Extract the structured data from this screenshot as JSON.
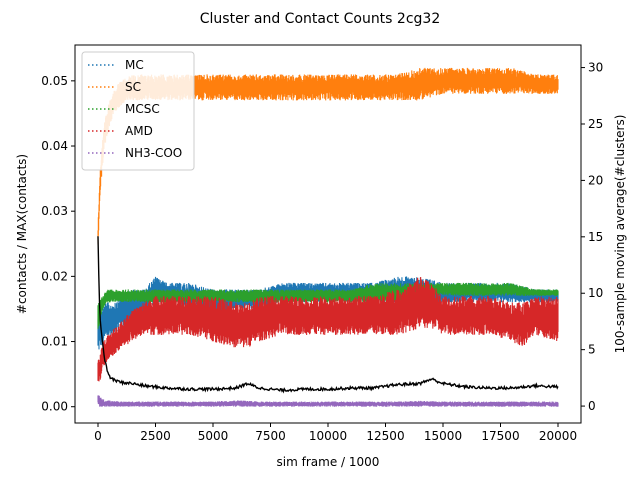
{
  "chart_data": {
    "type": "line",
    "title": "Cluster and Contact Counts 2cg32",
    "xlabel": "sim frame / 1000",
    "ylabel": "#contacts / MAX(contacts)",
    "ylabel_right": "100-sample moving average(#clusters)",
    "xlim": [
      -1000,
      21000
    ],
    "ylim": [
      -0.0025,
      0.0555
    ],
    "ylim_right": [
      -1.5,
      32.0
    ],
    "xticks": [
      0,
      2500,
      5000,
      7500,
      10000,
      12500,
      15000,
      17500,
      20000
    ],
    "xtick_labels": [
      "0",
      "2500",
      "5000",
      "7500",
      "10000",
      "12500",
      "15000",
      "17500",
      "20000"
    ],
    "yticks": [
      0.0,
      0.01,
      0.02,
      0.03,
      0.04,
      0.05
    ],
    "ytick_labels": [
      "0.00",
      "0.01",
      "0.02",
      "0.03",
      "0.04",
      "0.05"
    ],
    "yticks_right": [
      0,
      5,
      10,
      15,
      20,
      25,
      30
    ],
    "ytick_labels_right": [
      "0",
      "5",
      "10",
      "15",
      "20",
      "25",
      "30"
    ],
    "grid": false,
    "legend_position": "top-left",
    "series": [
      {
        "name": "MC",
        "color": "#1f77b4",
        "style": "dotted",
        "axis": "left",
        "x": [
          0,
          100,
          300,
          600,
          1000,
          1500,
          2000,
          2500,
          3000,
          4000,
          5000,
          6000,
          7000,
          8000,
          9000,
          10000,
          11000,
          12000,
          13000,
          14000,
          15000,
          16000,
          17000,
          18000,
          19000,
          20000
        ],
        "low": [
          0.008,
          0.009,
          0.01,
          0.011,
          0.012,
          0.013,
          0.014,
          0.016,
          0.016,
          0.015,
          0.014,
          0.015,
          0.015,
          0.016,
          0.016,
          0.016,
          0.016,
          0.016,
          0.016,
          0.016,
          0.016,
          0.016,
          0.016,
          0.016,
          0.016,
          0.016
        ],
        "high": [
          0.014,
          0.015,
          0.016,
          0.016,
          0.017,
          0.018,
          0.018,
          0.02,
          0.019,
          0.019,
          0.018,
          0.018,
          0.018,
          0.019,
          0.019,
          0.019,
          0.019,
          0.019,
          0.02,
          0.02,
          0.019,
          0.019,
          0.019,
          0.019,
          0.018,
          0.018
        ]
      },
      {
        "name": "SC",
        "color": "#ff7f0e",
        "style": "dotted",
        "axis": "left",
        "x": [
          0,
          50,
          100,
          200,
          300,
          500,
          700,
          1000,
          1500,
          2000,
          3000,
          4000,
          5000,
          6000,
          7000,
          8000,
          9000,
          10000,
          11000,
          12000,
          13000,
          14000,
          15000,
          16000,
          17000,
          18000,
          19000,
          20000
        ],
        "low": [
          0.024,
          0.029,
          0.033,
          0.037,
          0.04,
          0.043,
          0.045,
          0.046,
          0.047,
          0.047,
          0.047,
          0.047,
          0.047,
          0.047,
          0.047,
          0.047,
          0.047,
          0.047,
          0.047,
          0.047,
          0.047,
          0.047,
          0.048,
          0.048,
          0.048,
          0.048,
          0.048,
          0.048
        ],
        "high": [
          0.028,
          0.033,
          0.037,
          0.041,
          0.044,
          0.047,
          0.049,
          0.05,
          0.051,
          0.051,
          0.051,
          0.051,
          0.051,
          0.051,
          0.051,
          0.051,
          0.051,
          0.051,
          0.051,
          0.051,
          0.051,
          0.052,
          0.052,
          0.052,
          0.052,
          0.052,
          0.051,
          0.051
        ]
      },
      {
        "name": "MCSC",
        "color": "#2ca02c",
        "style": "dotted",
        "axis": "left",
        "x": [
          0,
          100,
          200,
          400,
          700,
          1000,
          2000,
          3000,
          4000,
          5000,
          6000,
          7000,
          8000,
          9000,
          10000,
          11000,
          12000,
          13000,
          14000,
          15000,
          16000,
          17000,
          18000,
          19000,
          20000
        ],
        "low": [
          0.011,
          0.013,
          0.015,
          0.016,
          0.016,
          0.016,
          0.016,
          0.016,
          0.016,
          0.016,
          0.016,
          0.016,
          0.016,
          0.016,
          0.016,
          0.016,
          0.016,
          0.016,
          0.017,
          0.017,
          0.017,
          0.017,
          0.017,
          0.017,
          0.017
        ],
        "high": [
          0.016,
          0.017,
          0.017,
          0.018,
          0.018,
          0.018,
          0.018,
          0.018,
          0.018,
          0.018,
          0.018,
          0.018,
          0.018,
          0.018,
          0.018,
          0.018,
          0.019,
          0.019,
          0.019,
          0.019,
          0.019,
          0.019,
          0.019,
          0.018,
          0.018
        ]
      },
      {
        "name": "AMD",
        "color": "#d62728",
        "style": "dotted",
        "axis": "left",
        "x": [
          0,
          100,
          200,
          400,
          700,
          1000,
          1500,
          2000,
          2500,
          3000,
          4000,
          5000,
          6000,
          6500,
          7000,
          8000,
          9000,
          10000,
          11000,
          12000,
          13000,
          14000,
          14500,
          15000,
          16000,
          17000,
          18000,
          18500,
          19000,
          20000
        ],
        "low": [
          0.003,
          0.004,
          0.006,
          0.007,
          0.008,
          0.009,
          0.01,
          0.011,
          0.011,
          0.011,
          0.011,
          0.01,
          0.009,
          0.009,
          0.01,
          0.011,
          0.011,
          0.011,
          0.011,
          0.011,
          0.011,
          0.012,
          0.012,
          0.011,
          0.011,
          0.011,
          0.01,
          0.009,
          0.011,
          0.01
        ],
        "high": [
          0.007,
          0.008,
          0.01,
          0.011,
          0.012,
          0.013,
          0.015,
          0.016,
          0.017,
          0.017,
          0.017,
          0.017,
          0.016,
          0.016,
          0.017,
          0.017,
          0.017,
          0.017,
          0.017,
          0.017,
          0.018,
          0.02,
          0.019,
          0.017,
          0.017,
          0.017,
          0.016,
          0.016,
          0.017,
          0.017
        ]
      },
      {
        "name": "NH3-COO",
        "color": "#9467bd",
        "style": "dotted",
        "axis": "left",
        "x": [
          0,
          100,
          300,
          1000,
          2000,
          3000,
          4000,
          5000,
          6000,
          7000,
          8000,
          9000,
          10000,
          11000,
          12000,
          13000,
          14000,
          15000,
          16000,
          17000,
          18000,
          19000,
          20000
        ],
        "low": [
          0.0,
          0.0,
          0.0,
          0.0,
          0.0,
          0.0,
          0.0,
          0.0,
          0.0,
          0.0,
          0.0,
          0.0,
          0.0,
          0.0,
          0.0,
          0.0,
          0.0,
          0.0,
          0.0,
          0.0,
          0.0,
          0.0,
          0.0
        ],
        "high": [
          0.002,
          0.0015,
          0.001,
          0.0008,
          0.0008,
          0.0008,
          0.0008,
          0.0008,
          0.001,
          0.0008,
          0.0008,
          0.0008,
          0.0008,
          0.0008,
          0.0008,
          0.0008,
          0.0009,
          0.0008,
          0.0008,
          0.0008,
          0.0008,
          0.0008,
          0.0008
        ]
      },
      {
        "name": "",
        "color": "#000000",
        "style": "solid",
        "axis": "right",
        "x": [
          0,
          50,
          100,
          200,
          300,
          400,
          500,
          700,
          1000,
          1500,
          2000,
          3000,
          4000,
          5000,
          6000,
          6500,
          7000,
          8000,
          9000,
          10000,
          11000,
          12000,
          13000,
          14000,
          14500,
          15000,
          16000,
          17000,
          18000,
          19000,
          20000
        ],
        "values": [
          15.0,
          10.0,
          7.5,
          5.5,
          4.0,
          3.2,
          2.6,
          2.3,
          2.1,
          2.0,
          1.8,
          1.6,
          1.5,
          1.5,
          1.6,
          2.0,
          1.6,
          1.4,
          1.5,
          1.5,
          1.6,
          1.6,
          1.9,
          2.0,
          2.4,
          2.0,
          1.7,
          1.6,
          1.6,
          1.8,
          1.7
        ]
      }
    ]
  }
}
